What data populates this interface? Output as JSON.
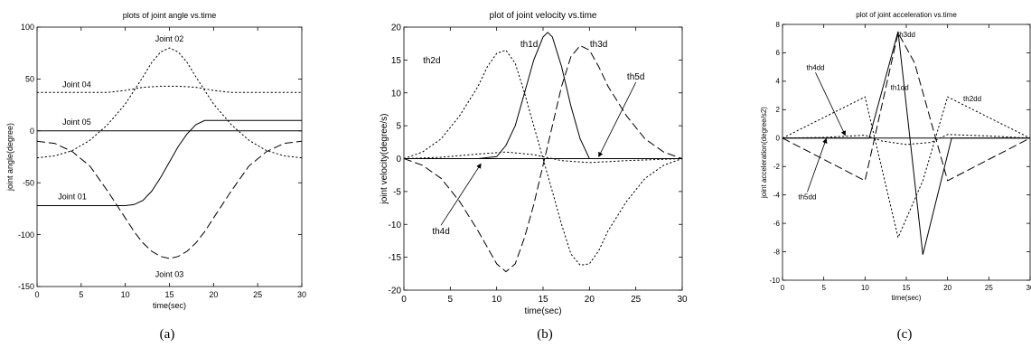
{
  "chart_data": [
    {
      "type": "line",
      "title": "plots of joint angle vs.time",
      "xlabel": "time(sec)",
      "ylabel": "joint angle(degree)",
      "xlim": [
        0,
        30
      ],
      "ylim": [
        -150,
        100
      ],
      "xticks": [
        0,
        5,
        10,
        15,
        20,
        25,
        30
      ],
      "yticks": [
        100,
        50,
        0,
        -50,
        -100,
        -150
      ],
      "grid": false,
      "caption": "(a)",
      "series": [
        {
          "name": "Joint 01",
          "style": "solid",
          "x": [
            0,
            10,
            11,
            12,
            13,
            14,
            15,
            16,
            17,
            18,
            19,
            20,
            30
          ],
          "y": [
            -72,
            -72,
            -71,
            -67,
            -58,
            -45,
            -30,
            -15,
            -3,
            6,
            10,
            10,
            10
          ]
        },
        {
          "name": "Joint 02",
          "style": "dotted",
          "x": [
            0,
            2,
            4,
            6,
            8,
            10,
            12,
            13,
            14,
            15,
            16,
            17,
            18,
            20,
            22,
            24,
            26,
            28,
            30
          ],
          "y": [
            -26,
            -24,
            -19,
            -9,
            6,
            26,
            52,
            66,
            76,
            80,
            76,
            66,
            52,
            26,
            6,
            -9,
            -19,
            -24,
            -26
          ]
        },
        {
          "name": "Joint 03",
          "style": "dashed",
          "x": [
            0,
            2,
            4,
            6,
            8,
            10,
            11,
            12,
            13,
            14,
            15,
            16,
            17,
            18,
            19,
            20,
            22,
            24,
            26,
            28,
            30
          ],
          "y": [
            -10,
            -12,
            -20,
            -34,
            -58,
            -84,
            -97,
            -108,
            -116,
            -121,
            -123,
            -121,
            -116,
            -108,
            -97,
            -84,
            -58,
            -34,
            -20,
            -12,
            -10
          ]
        },
        {
          "name": "Joint 04",
          "style": "dotted",
          "x": [
            0,
            8,
            10,
            12,
            14,
            15,
            16,
            18,
            20,
            22,
            30
          ],
          "y": [
            37,
            37,
            39,
            42,
            43,
            43,
            43,
            42,
            39,
            37,
            37
          ]
        },
        {
          "name": "Joint 05",
          "style": "solid",
          "x": [
            0,
            30
          ],
          "y": [
            0,
            0
          ]
        }
      ],
      "annotations": [
        {
          "text": "Joint 02",
          "x": 15,
          "y": 86
        },
        {
          "text": "Joint 04",
          "x": 4.5,
          "y": 42
        },
        {
          "text": "Joint 05",
          "x": 4.5,
          "y": 6
        },
        {
          "text": "Joint 01",
          "x": 4,
          "y": -66
        },
        {
          "text": "Joint 03",
          "x": 15,
          "y": -141
        }
      ]
    },
    {
      "type": "line",
      "title": "plot of joint velocity vs.time",
      "xlabel": "time(sec)",
      "ylabel": "joint velocity(degree/s)",
      "xlim": [
        0,
        30
      ],
      "ylim": [
        -20,
        20
      ],
      "xticks": [
        0,
        5,
        10,
        15,
        20,
        25,
        30
      ],
      "yticks": [
        20,
        15,
        10,
        5,
        0,
        -5,
        -10,
        -15,
        -20
      ],
      "grid": false,
      "caption": "(b)",
      "series": [
        {
          "name": "th1d",
          "style": "solid",
          "x": [
            0,
            8,
            10,
            11,
            12,
            13,
            14,
            15,
            15.5,
            16,
            17,
            18,
            19,
            20,
            30
          ],
          "y": [
            0,
            0,
            0.3,
            2,
            5,
            10,
            15,
            18.5,
            19.2,
            18.5,
            14,
            8,
            3,
            0,
            0
          ]
        },
        {
          "name": "th2d",
          "style": "dotted",
          "x": [
            0,
            2,
            4,
            6,
            8,
            9,
            10,
            11,
            12,
            13,
            14,
            15,
            16,
            17,
            18,
            19,
            20,
            21,
            22,
            24,
            26,
            28,
            30
          ],
          "y": [
            0,
            1,
            3,
            6.5,
            11,
            14,
            16,
            16.5,
            14.5,
            10,
            5,
            0,
            -5,
            -10,
            -14.5,
            -16.2,
            -16,
            -14,
            -11,
            -6.5,
            -3,
            -1,
            0
          ]
        },
        {
          "name": "th3d",
          "style": "dashed",
          "x": [
            0,
            2,
            4,
            6,
            8,
            10,
            11,
            12,
            13,
            14,
            15,
            16,
            17,
            18,
            19,
            20,
            21,
            22,
            24,
            26,
            28,
            30
          ],
          "y": [
            0,
            -1,
            -3,
            -6.5,
            -11,
            -16,
            -17.2,
            -16,
            -12,
            -7,
            -1,
            5,
            11,
            15.5,
            17.2,
            16.5,
            14,
            11,
            6.5,
            3,
            1,
            0
          ]
        },
        {
          "name": "th4d",
          "style": "dotted",
          "x": [
            0,
            4,
            8,
            11,
            14,
            17,
            20,
            24,
            30
          ],
          "y": [
            0,
            0.2,
            0.7,
            1,
            0.6,
            -0.3,
            -0.6,
            -0.3,
            0
          ]
        },
        {
          "name": "th5d",
          "style": "solid",
          "x": [
            0,
            30
          ],
          "y": [
            0,
            0
          ]
        }
      ],
      "annotations": [
        {
          "text": "th1d",
          "x": 13.5,
          "y": 17
        },
        {
          "text": "th2d",
          "x": 3,
          "y": 14.5
        },
        {
          "text": "th3d",
          "x": 21,
          "y": 17
        },
        {
          "text": "th5d",
          "x": 25,
          "y": 12
        },
        {
          "text": "th4d",
          "x": 4,
          "y": -11.5
        }
      ]
    },
    {
      "type": "line",
      "title": "plot of joint acceleration vs.time",
      "xlabel": "time(sec)",
      "ylabel": "joint acceleration(degree/s2)",
      "xlim": [
        0,
        30
      ],
      "ylim": [
        -10,
        8
      ],
      "xticks": [
        0,
        5,
        10,
        15,
        20,
        25,
        30
      ],
      "yticks": [
        8,
        6,
        4,
        2,
        0,
        -2,
        -4,
        -6,
        -8,
        -10
      ],
      "grid": false,
      "caption": "(c)",
      "series": [
        {
          "name": "th1dd",
          "style": "solid",
          "x": [
            0,
            10.5,
            14,
            17,
            20.5,
            30
          ],
          "y": [
            0,
            0,
            7.5,
            -8.2,
            0,
            0
          ]
        },
        {
          "name": "th2dd",
          "style": "dotted",
          "x": [
            0,
            10,
            14,
            17,
            20,
            30
          ],
          "y": [
            0,
            2.9,
            -7,
            -3,
            2.9,
            0
          ]
        },
        {
          "name": "th3dd",
          "style": "dashed",
          "x": [
            0,
            10,
            14,
            16,
            20,
            30
          ],
          "y": [
            0,
            -3,
            7.4,
            5.3,
            -3,
            0
          ]
        },
        {
          "name": "th4dd",
          "style": "dotted",
          "x": [
            0,
            5,
            10,
            12,
            15,
            18,
            20,
            25,
            30
          ],
          "y": [
            0,
            0.05,
            0.2,
            -0.2,
            -0.45,
            -0.3,
            0.25,
            0.15,
            0
          ]
        },
        {
          "name": "th5dd",
          "style": "solid",
          "x": [
            0,
            30
          ],
          "y": [
            0,
            0
          ]
        }
      ],
      "annotations": [
        {
          "text": "th4dd",
          "x": 4,
          "y": 4.8
        },
        {
          "text": "th3dd",
          "x": 15,
          "y": 7.1
        },
        {
          "text": "th1dd",
          "x": 14.2,
          "y": 3.4
        },
        {
          "text": "th2dd",
          "x": 23,
          "y": 2.6
        },
        {
          "text": "th5dd",
          "x": 3,
          "y": -4.3
        }
      ]
    }
  ]
}
